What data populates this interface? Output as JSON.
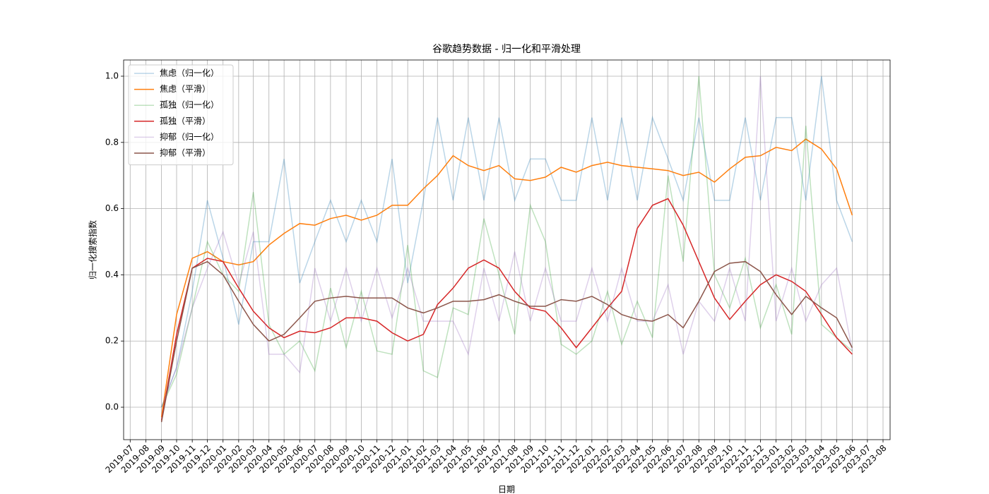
{
  "chart_data": {
    "type": "line",
    "title": "谷歌趋势数据 - 归一化和平滑处理",
    "xlabel": "日期",
    "ylabel": "归一化搜索指数",
    "x": [
      "2019-09",
      "2019-10",
      "2019-11",
      "2019-12",
      "2020-01",
      "2020-02",
      "2020-03",
      "2020-04",
      "2020-05",
      "2020-06",
      "2020-07",
      "2020-08",
      "2020-09",
      "2020-10",
      "2020-11",
      "2020-12",
      "2021-01",
      "2021-02",
      "2021-03",
      "2021-04",
      "2021-05",
      "2021-06",
      "2021-07",
      "2021-08",
      "2021-09",
      "2021-10",
      "2021-11",
      "2021-12",
      "2022-01",
      "2022-02",
      "2022-03",
      "2022-04",
      "2022-05",
      "2022-06",
      "2022-07",
      "2022-08",
      "2022-09",
      "2022-10",
      "2022-11",
      "2022-12",
      "2023-01",
      "2023-02",
      "2023-03",
      "2023-04",
      "2023-05",
      "2023-06"
    ],
    "series": [
      {
        "name": "焦虑（归一化）",
        "color": "#1f77b4",
        "opacity": 0.3,
        "values": [
          0.0,
          0.12,
          0.35,
          0.625,
          0.45,
          0.25,
          0.5,
          0.5,
          0.75,
          0.375,
          0.5,
          0.625,
          0.5,
          0.625,
          0.5,
          0.75,
          0.375,
          0.625,
          0.875,
          0.625,
          0.875,
          0.625,
          0.875,
          0.625,
          0.75,
          0.75,
          0.625,
          0.625,
          0.875,
          0.625,
          0.875,
          0.625,
          0.875,
          0.75,
          0.625,
          0.875,
          0.625,
          0.625,
          0.875,
          0.625,
          0.875,
          0.875,
          0.625,
          1.0,
          0.625,
          0.5
        ]
      },
      {
        "name": "焦虑（平滑）",
        "color": "#ff7f0e",
        "opacity": 1,
        "values": [
          -0.03,
          0.28,
          0.45,
          0.47,
          0.44,
          0.43,
          0.44,
          0.49,
          0.525,
          0.555,
          0.55,
          0.57,
          0.58,
          0.565,
          0.58,
          0.61,
          0.61,
          0.66,
          0.7,
          0.76,
          0.73,
          0.715,
          0.73,
          0.69,
          0.685,
          0.695,
          0.725,
          0.71,
          0.73,
          0.74,
          0.73,
          0.725,
          0.72,
          0.715,
          0.7,
          0.71,
          0.68,
          0.72,
          0.755,
          0.76,
          0.785,
          0.775,
          0.81,
          0.78,
          0.72,
          0.58
        ]
      },
      {
        "name": "孤独（归一化）",
        "color": "#2ca02c",
        "opacity": 0.3,
        "values": [
          0.0,
          0.1,
          0.3,
          0.5,
          0.4,
          0.35,
          0.65,
          0.25,
          0.16,
          0.2,
          0.11,
          0.36,
          0.18,
          0.35,
          0.17,
          0.16,
          0.49,
          0.11,
          0.09,
          0.3,
          0.28,
          0.57,
          0.4,
          0.22,
          0.61,
          0.5,
          0.19,
          0.16,
          0.2,
          0.35,
          0.19,
          0.32,
          0.21,
          0.7,
          0.44,
          1.0,
          0.4,
          0.3,
          0.45,
          0.24,
          0.37,
          0.22,
          0.85,
          0.25,
          0.21,
          0.17
        ]
      },
      {
        "name": "孤独（平滑）",
        "color": "#d62728",
        "opacity": 1,
        "values": [
          -0.04,
          0.22,
          0.42,
          0.45,
          0.44,
          0.36,
          0.29,
          0.24,
          0.21,
          0.23,
          0.225,
          0.24,
          0.27,
          0.27,
          0.26,
          0.225,
          0.2,
          0.22,
          0.31,
          0.36,
          0.42,
          0.445,
          0.42,
          0.35,
          0.3,
          0.29,
          0.24,
          0.18,
          0.24,
          0.3,
          0.35,
          0.54,
          0.61,
          0.63,
          0.55,
          0.44,
          0.33,
          0.265,
          0.32,
          0.37,
          0.4,
          0.38,
          0.35,
          0.28,
          0.21,
          0.16
        ]
      },
      {
        "name": "抑郁（归一化）",
        "color": "#9467bd",
        "opacity": 0.3,
        "values": [
          0.0,
          0.12,
          0.3,
          0.42,
          0.53,
          0.37,
          0.53,
          0.16,
          0.16,
          0.105,
          0.42,
          0.26,
          0.42,
          0.26,
          0.42,
          0.27,
          0.42,
          0.26,
          0.26,
          0.26,
          0.16,
          0.42,
          0.26,
          0.47,
          0.26,
          0.42,
          0.26,
          0.26,
          0.42,
          0.26,
          0.42,
          0.26,
          0.26,
          0.37,
          0.16,
          0.32,
          0.26,
          0.42,
          0.26,
          1.0,
          0.26,
          0.42,
          0.26,
          0.37,
          0.42,
          0.17
        ]
      },
      {
        "name": "抑郁（平滑）",
        "color": "#8c564b",
        "opacity": 1,
        "values": [
          -0.045,
          0.2,
          0.42,
          0.44,
          0.4,
          0.32,
          0.25,
          0.2,
          0.22,
          0.27,
          0.32,
          0.33,
          0.335,
          0.33,
          0.33,
          0.33,
          0.3,
          0.285,
          0.3,
          0.32,
          0.32,
          0.325,
          0.34,
          0.32,
          0.305,
          0.305,
          0.325,
          0.32,
          0.335,
          0.31,
          0.28,
          0.265,
          0.26,
          0.28,
          0.24,
          0.32,
          0.41,
          0.435,
          0.44,
          0.41,
          0.34,
          0.28,
          0.335,
          0.3,
          0.27,
          0.18
        ]
      }
    ],
    "xlim": [
      "2019-06-18",
      "2023-08-15"
    ],
    "xticks": [
      "2019-07",
      "2019-08",
      "2019-09",
      "2019-10",
      "2019-11",
      "2019-12",
      "2020-01",
      "2020-02",
      "2020-03",
      "2020-04",
      "2020-05",
      "2020-06",
      "2020-07",
      "2020-08",
      "2020-09",
      "2020-10",
      "2020-11",
      "2020-12",
      "2021-01",
      "2021-02",
      "2021-03",
      "2021-04",
      "2021-05",
      "2021-06",
      "2021-07",
      "2021-08",
      "2021-09",
      "2021-10",
      "2021-11",
      "2021-12",
      "2022-01",
      "2022-02",
      "2022-03",
      "2022-04",
      "2022-05",
      "2022-06",
      "2022-07",
      "2022-08",
      "2022-09",
      "2022-10",
      "2022-11",
      "2022-12",
      "2023-01",
      "2023-02",
      "2023-03",
      "2023-04",
      "2023-05",
      "2023-06",
      "2023-07",
      "2023-08"
    ],
    "ylim": [
      -0.098,
      1.049
    ],
    "yticks": [
      {
        "value": 0,
        "label": "0.0"
      },
      0.2,
      0.4,
      0.6,
      0.8,
      {
        "value": 1,
        "label": "1.0"
      }
    ],
    "grid": true,
    "legend": "upper left"
  }
}
